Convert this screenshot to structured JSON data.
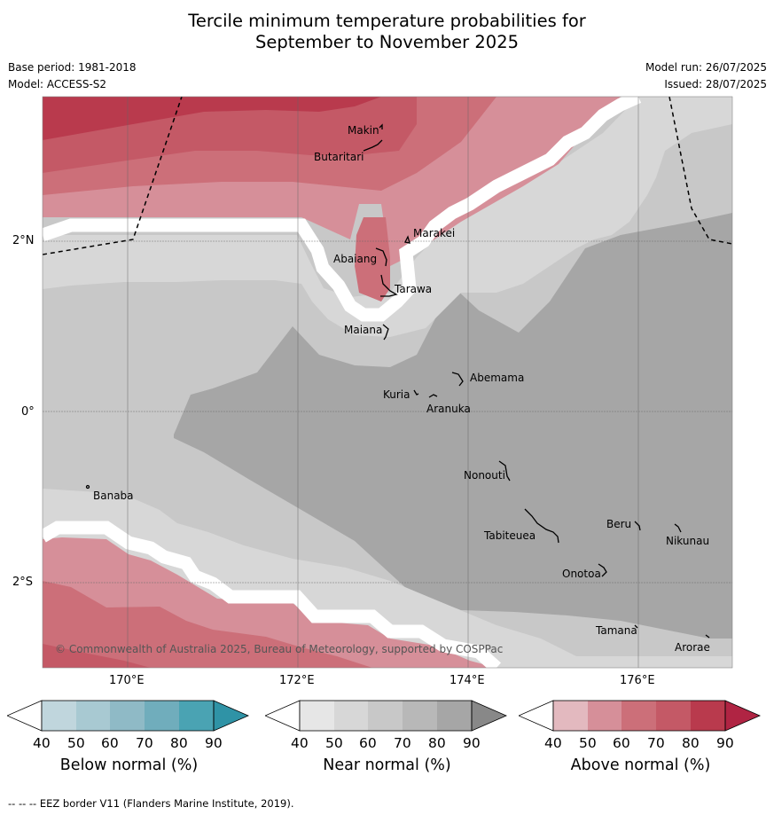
{
  "title_line1": "Tercile minimum temperature probabilities for",
  "title_line2": "September to November 2025",
  "meta_left": [
    "Base period: 1981-2018",
    "Model: ACCESS-S2"
  ],
  "meta_right": [
    "Model run: 26/07/2025",
    "Issued: 28/07/2025"
  ],
  "map": {
    "lon_ticks": [
      "170°E",
      "172°E",
      "174°E",
      "176°E"
    ],
    "lat_ticks": [
      "2°N",
      "0°",
      "2°S"
    ],
    "copyright": "© Commonwealth of Australia 2025, Bureau of Meteorology, supported by COSPPac",
    "places": [
      "Makin",
      "Butaritari",
      "Marakei",
      "Abaiang",
      "Tarawa",
      "Maiana",
      "Abemama",
      "Kuria",
      "Aranuka",
      "Nonouti",
      "Banaba",
      "Tabiteuea",
      "Beru",
      "Nikunau",
      "Onotoa",
      "Tamana",
      "Arorae"
    ]
  },
  "colorbars": [
    {
      "label": "Below normal (%)",
      "ticks": [
        "40",
        "50",
        "60",
        "70",
        "80",
        "90"
      ],
      "colors": [
        "#ffffff",
        "#c0d6dd",
        "#a8c9d2",
        "#8fbac6",
        "#70adbc",
        "#4aa3b3",
        "#2f93a6"
      ]
    },
    {
      "label": "Near normal (%)",
      "ticks": [
        "40",
        "50",
        "60",
        "70",
        "80",
        "90"
      ],
      "colors": [
        "#ffffff",
        "#e6e6e6",
        "#d7d7d7",
        "#c8c8c8",
        "#b8b8b8",
        "#a6a6a6",
        "#888888"
      ]
    },
    {
      "label": "Above normal (%)",
      "ticks": [
        "40",
        "50",
        "60",
        "70",
        "80",
        "90"
      ],
      "colors": [
        "#ffffff",
        "#e3b9bf",
        "#d68f99",
        "#cc6f79",
        "#c45966",
        "#b93a4d",
        "#b02443"
      ]
    }
  ],
  "footer": "--  --  -- EEZ border V11 (Flanders Marine Institute, 2019)."
}
